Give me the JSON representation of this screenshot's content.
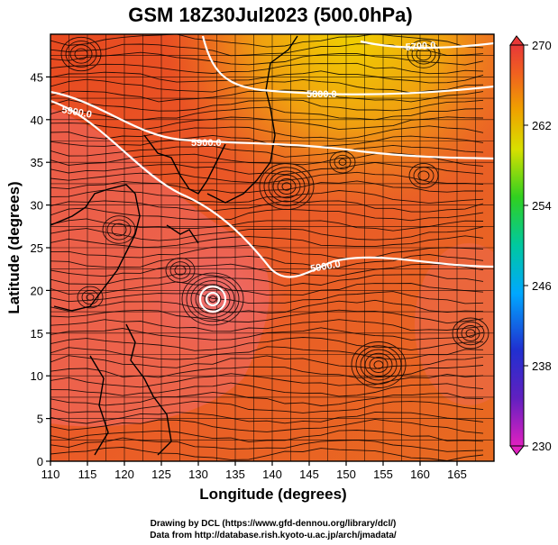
{
  "title": "GSM 18Z30Jul2023 (500.0hPa)",
  "x_axis": {
    "label": "Longitude (degrees)",
    "range": [
      110,
      170
    ],
    "ticks": [
      "110",
      "115",
      "120",
      "125",
      "130",
      "135",
      "140",
      "145",
      "150",
      "155",
      "160",
      "165"
    ]
  },
  "y_axis": {
    "label": "Latitude  (degrees)",
    "range": [
      0,
      50
    ],
    "ticks": [
      "0",
      "5",
      "10",
      "15",
      "20",
      "25",
      "30",
      "35",
      "40",
      "45"
    ]
  },
  "colorbar": {
    "min": 230,
    "max": 270,
    "ticks": [
      "230",
      "238",
      "246",
      "254",
      "262",
      "270"
    ],
    "colors": [
      "#e000c0",
      "#3020c8",
      "#00a0ff",
      "#00c8a0",
      "#40d020",
      "#e0e000",
      "#f0a000",
      "#f06020",
      "#e83030"
    ]
  },
  "contours": [
    {
      "label": "5700.0"
    },
    {
      "label": "5800.0"
    },
    {
      "label": "5900.0"
    },
    {
      "label": "5900.0"
    },
    {
      "label": "5900.0"
    }
  ],
  "footer": {
    "line1": "Drawing by DCL (https://www.gfd-dennou.org/library/dcl/)",
    "line2": "Data from http://database.rish.kyoto-u.ac.jp/arch/jmadata/"
  }
}
